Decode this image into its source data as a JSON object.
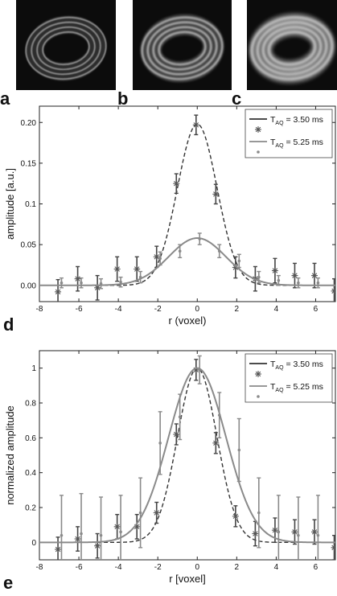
{
  "panels": {
    "images": [
      {
        "letter": "a",
        "rings": 4,
        "brightness": 0.55,
        "blur": 0.3
      },
      {
        "letter": "b",
        "rings": 4,
        "brightness": 0.72,
        "blur": 0.9
      },
      {
        "letter": "c",
        "rings": 4,
        "brightness": 0.9,
        "blur": 1.6
      }
    ]
  },
  "chart_data": [
    {
      "type": "line",
      "panel_letter": "d",
      "xlabel": "r (voxel)",
      "ylabel": "amplitude [a.u.]",
      "xlim": [
        -8,
        7
      ],
      "ylim": [
        -0.02,
        0.22
      ],
      "xticks": [
        -8,
        -6,
        -4,
        -2,
        0,
        2,
        4,
        6
      ],
      "xtick_labels": [
        "-8",
        "-6",
        "-4",
        "-2",
        "0",
        "2",
        "4",
        "6"
      ],
      "yticks": [
        0,
        0.05,
        0.1,
        0.15,
        0.2
      ],
      "ytick_labels": [
        "0.00",
        "0.05",
        "0.1",
        "0.15",
        "0.20"
      ],
      "grid": false,
      "legend_position": "top-right",
      "series": [
        {
          "name": "3.50 ms",
          "legend_label": "T",
          "legend_sub": "AQ",
          "legend_suffix": " = 3.50 ms",
          "fit_color": "#333333",
          "fit_style": "dashed",
          "fit_amplitude": 0.198,
          "fit_width": 1.0,
          "marker": "star",
          "x": [
            -7,
            -6,
            -5,
            -4,
            -3,
            -2,
            -1,
            0,
            1,
            2,
            3,
            4,
            5,
            6,
            7
          ],
          "y": [
            -0.008,
            0.008,
            -0.003,
            0.02,
            0.02,
            0.035,
            0.125,
            0.197,
            0.112,
            0.022,
            0.008,
            0.018,
            0.012,
            0.012,
            -0.007
          ],
          "err": [
            0.015,
            0.015,
            0.015,
            0.015,
            0.015,
            0.013,
            0.012,
            0.012,
            0.012,
            0.013,
            0.015,
            0.015,
            0.015,
            0.015,
            0.015
          ]
        },
        {
          "name": "5.25 ms",
          "legend_label": "T",
          "legend_sub": "AQ",
          "legend_suffix": " = 5.25 ms",
          "fit_color": "#8a8a8a",
          "fit_style": "solid",
          "fit_amplitude": 0.058,
          "fit_width": 1.45,
          "marker": "dot",
          "x": [
            -7,
            -6,
            -5,
            -4,
            -3,
            -2,
            -1,
            0,
            1,
            2,
            3,
            4,
            5,
            6,
            7
          ],
          "y": [
            0.003,
            0.003,
            0.002,
            0.004,
            0.01,
            0.033,
            0.042,
            0.057,
            0.042,
            0.03,
            0.01,
            0.006,
            0.003,
            0.003,
            0.001
          ],
          "err": [
            0.006,
            0.006,
            0.006,
            0.006,
            0.007,
            0.008,
            0.008,
            0.007,
            0.008,
            0.008,
            0.007,
            0.006,
            0.006,
            0.006,
            0.006
          ]
        }
      ]
    },
    {
      "type": "line",
      "panel_letter": "e",
      "xlabel": "r [voxel]",
      "ylabel": "normalized amplitude",
      "xlim": [
        -8,
        7
      ],
      "ylim": [
        -0.1,
        1.1
      ],
      "xticks": [
        -8,
        -6,
        -4,
        -2,
        0,
        2,
        4,
        6
      ],
      "xtick_labels": [
        "-8",
        "-6",
        "-4",
        "-2",
        "0",
        "2",
        "4",
        "6"
      ],
      "yticks": [
        0,
        0.2,
        0.4,
        0.6,
        0.8,
        1
      ],
      "ytick_labels": [
        "0",
        "0.2",
        "0.4",
        "0.6",
        "0.8",
        "1"
      ],
      "grid": false,
      "legend_position": "top-right",
      "series": [
        {
          "name": "3.50 ms",
          "legend_label": "T",
          "legend_sub": "AQ",
          "legend_suffix": " = 3.50 ms",
          "fit_color": "#333333",
          "fit_style": "dashed",
          "fit_amplitude": 1.0,
          "fit_width": 1.0,
          "marker": "star",
          "x": [
            -7,
            -6,
            -5,
            -4,
            -3,
            -2,
            -1,
            0,
            1,
            2,
            3,
            4,
            5,
            6,
            7
          ],
          "y": [
            -0.04,
            0.02,
            -0.02,
            0.09,
            0.09,
            0.17,
            0.62,
            0.99,
            0.57,
            0.15,
            0.05,
            0.07,
            0.06,
            0.06,
            -0.03
          ],
          "err": [
            0.07,
            0.07,
            0.07,
            0.07,
            0.07,
            0.06,
            0.06,
            0.06,
            0.06,
            0.06,
            0.07,
            0.07,
            0.07,
            0.07,
            0.07
          ]
        },
        {
          "name": "5.25 ms",
          "legend_label": "T",
          "legend_sub": "AQ",
          "legend_suffix": " = 5.25 ms",
          "fit_color": "#8a8a8a",
          "fit_style": "solid",
          "fit_amplitude": 1.0,
          "fit_width": 1.45,
          "marker": "dot",
          "x": [
            -7,
            -6,
            -5,
            -4,
            -3,
            -2,
            -1,
            0,
            1,
            2,
            3,
            4,
            5,
            6,
            7
          ],
          "y": [
            0.04,
            0.05,
            0.04,
            0.06,
            0.17,
            0.57,
            0.72,
            0.99,
            0.73,
            0.53,
            0.17,
            0.06,
            0.04,
            0.04,
            0.02
          ],
          "err": [
            0.23,
            0.23,
            0.22,
            0.21,
            0.2,
            0.18,
            0.13,
            0.08,
            0.13,
            0.18,
            0.2,
            0.21,
            0.22,
            0.23,
            0.23
          ]
        }
      ]
    }
  ]
}
